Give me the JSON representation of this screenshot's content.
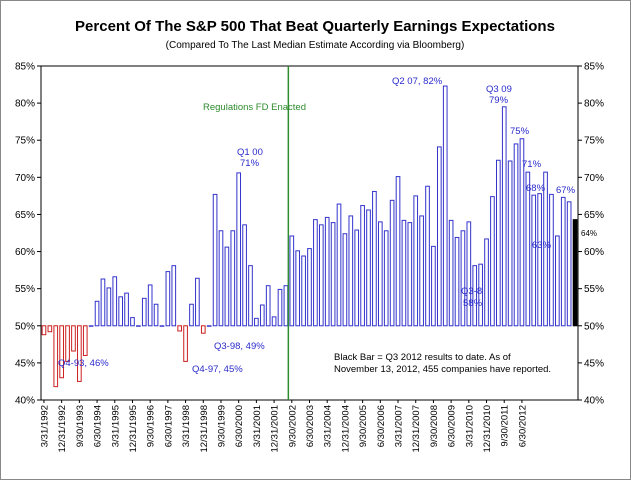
{
  "chart_data": {
    "type": "bar",
    "title": "Percent Of The S&P 500 That Beat Quarterly Earnings Expectations",
    "subtitle": "(Compared To The Last Median Estimate According via Bloomberg)",
    "ylim": [
      40,
      85
    ],
    "yticks": [
      "40%",
      "45%",
      "50%",
      "55%",
      "60%",
      "65%",
      "70%",
      "75%",
      "80%",
      "85%"
    ],
    "baseline": 50,
    "xtick_labels": [
      "3/31/1992",
      "12/31/1992",
      "9/30/1993",
      "6/30/1994",
      "3/31/1995",
      "12/31/1995",
      "9/30/1996",
      "6/30/1997",
      "3/31/1998",
      "12/31/1998",
      "9/30/1999",
      "6/30/2000",
      "3/31/2001",
      "12/31/2001",
      "9/30/2002",
      "6/30/2003",
      "3/31/2004",
      "12/31/2004",
      "9/30/2005",
      "6/30/2006",
      "3/31/2007",
      "12/31/2007",
      "9/30/2008",
      "6/30/2009",
      "3/31/2010",
      "12/31/2010",
      "9/30/2011",
      "6/30/2012"
    ],
    "values": [
      48.8,
      49.2,
      41.8,
      43.0,
      45.2,
      46.6,
      42.5,
      46.0,
      50.0,
      53.3,
      56.3,
      55.1,
      56.6,
      53.9,
      54.4,
      51.1,
      50.0,
      53.7,
      55.5,
      52.9,
      50.0,
      57.3,
      58.1,
      49.3,
      45.2,
      52.9,
      56.4,
      49.0,
      50.0,
      67.7,
      62.8,
      60.6,
      62.8,
      70.6,
      63.6,
      58.1,
      51.0,
      52.8,
      55.4,
      51.2,
      54.9,
      55.4,
      62.1,
      60.1,
      59.4,
      60.4,
      64.3,
      63.6,
      64.6,
      63.9,
      66.4,
      62.4,
      64.8,
      62.9,
      66.2,
      65.6,
      68.1,
      64.0,
      62.8,
      66.9,
      70.1,
      64.2,
      63.9,
      67.5,
      64.8,
      68.8,
      60.7,
      74.1,
      82.3,
      64.2,
      61.9,
      62.8,
      64.0,
      58.1,
      58.3,
      61.7,
      67.4,
      72.3,
      79.5,
      72.2,
      74.5,
      75.2,
      70.7,
      67.6,
      67.8,
      70.7,
      67.7,
      62.1,
      67.3,
      66.7,
      64.3
    ],
    "colors": {
      "above": "#3333cc",
      "below": "#cc1f1f",
      "current": "#000000",
      "event_line": "#2e8b2e"
    },
    "annotations": {
      "regfd": "Regulations FD Enacted",
      "q4_93": "Q4-93, 46%",
      "q4_97": "Q4-97, 45%",
      "q3_98": "Q3-98, 49%",
      "q1_00_a": "Q1 00",
      "q1_00_b": "71%",
      "q2_07": "Q2 07, 82%",
      "q3_09_a": "Q3 09",
      "q3_09_b": "79%",
      "pct75": "75%",
      "pct71": "71%",
      "pct68": "68%",
      "pct67": "67%",
      "pct63": "63%",
      "q3_8": "Q3-8",
      "pct58": "58%",
      "pct64": "64%",
      "note1": "Black Bar = Q3 2012 results to date.  As of",
      "note2": "November 13, 2012, 455 companies have reported."
    }
  }
}
